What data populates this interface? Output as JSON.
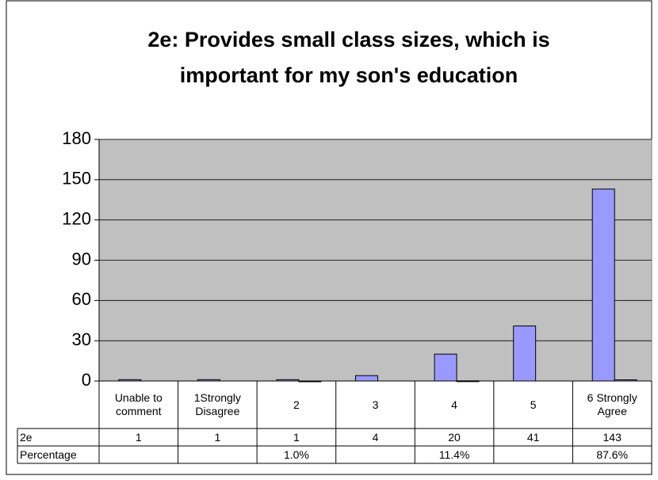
{
  "chart_data": {
    "type": "bar",
    "title": "2e: Provides small class sizes, which is important for my son's education",
    "categories": [
      "Unable to comment",
      "1Strongly Disagree",
      "2",
      "3",
      "4",
      "5",
      "6 Strongly Agree"
    ],
    "series": [
      {
        "name": "2e",
        "color": "#9999ff",
        "values": [
          1,
          1,
          1,
          4,
          20,
          41,
          143
        ]
      },
      {
        "name": "Percentage",
        "color": "#9999ff",
        "values": [
          null,
          null,
          0.01,
          null,
          0.114,
          null,
          0.876
        ],
        "value_labels": [
          null,
          null,
          "1.0%",
          null,
          "11.4%",
          null,
          "87.6%"
        ]
      }
    ],
    "ylim": [
      0,
      180
    ],
    "yticks": [
      0,
      30,
      60,
      90,
      120,
      150,
      180
    ],
    "grid": true
  }
}
